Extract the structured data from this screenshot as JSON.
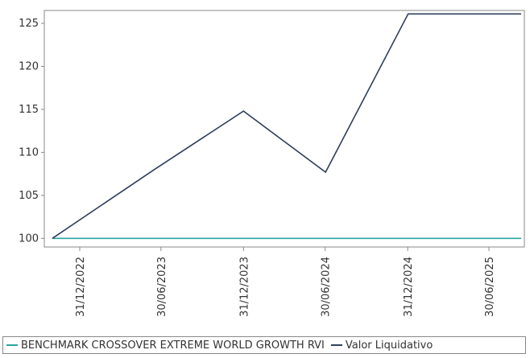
{
  "chart_data": {
    "type": "line",
    "title": "",
    "xlabel": "",
    "ylabel": "",
    "x_ticks": [
      "31/12/2022",
      "30/06/2023",
      "31/12/2023",
      "30/06/2024",
      "31/12/2024",
      "30/06/2025"
    ],
    "y_ticks": [
      100,
      105,
      110,
      115,
      120,
      125
    ],
    "ylim": [
      99,
      126.5
    ],
    "xlim": [
      "2022-10-13",
      "2025-09-17"
    ],
    "grid": false,
    "legend_position": "bottom",
    "series": [
      {
        "name": "BENCHMARK CROSSOVER EXTREME WORLD GROWTH RVI",
        "color": "#2aa4a4",
        "points": [
          {
            "x": "2022-10-31",
            "y": 100
          },
          {
            "x": "2025-09-10",
            "y": 100
          }
        ]
      },
      {
        "name": "Valor Liquidativo",
        "color": "#2e3f5c",
        "points": [
          {
            "x": "2022-10-31",
            "y": 100
          },
          {
            "x": "2023-06-15",
            "y": 108
          },
          {
            "x": "2023-12-31",
            "y": 114.8
          },
          {
            "x": "2024-07-01",
            "y": 107.7
          },
          {
            "x": "2025-01-01",
            "y": 126.1
          },
          {
            "x": "2025-09-10",
            "y": 126.1
          }
        ]
      }
    ]
  }
}
